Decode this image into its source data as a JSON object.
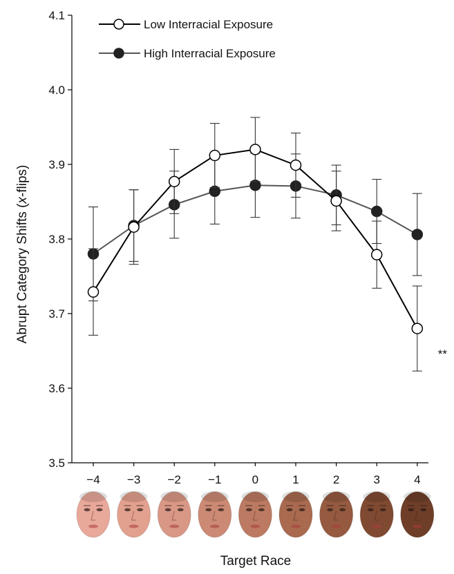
{
  "chart_data": {
    "type": "line",
    "title": "",
    "xlabel": "Target Race",
    "ylabel": "Abrupt Category Shifts (x-flips)",
    "ylabel_parts": {
      "before": "Abrupt Category Shifts (",
      "italic": "x",
      "after": "-flips)"
    },
    "x": [
      -4,
      -3,
      -2,
      -1,
      0,
      1,
      2,
      3,
      4
    ],
    "x_tick_labels": [
      "−4",
      "−3",
      "−2",
      "−1",
      "0",
      "1",
      "2",
      "3",
      "4"
    ],
    "ylim": [
      3.5,
      4.1
    ],
    "y_ticks": [
      3.5,
      3.6,
      3.7,
      3.8,
      3.9,
      4.0,
      4.1
    ],
    "y_tick_labels": [
      "3.5",
      "3.6",
      "3.7",
      "3.8",
      "3.9",
      "4.0",
      "4.1"
    ],
    "grid": false,
    "legend_position": "top-left",
    "series": [
      {
        "name": "Low Interracial Exposure",
        "marker": "open-circle",
        "line_color": "#000000",
        "values": [
          3.729,
          3.816,
          3.877,
          3.912,
          3.92,
          3.899,
          3.851,
          3.779,
          3.68
        ],
        "error": [
          0.058,
          0.05,
          0.043,
          0.043,
          0.043,
          0.043,
          0.04,
          0.045,
          0.057
        ]
      },
      {
        "name": "High Interracial Exposure",
        "marker": "filled-circle",
        "line_color": "#555555",
        "values": [
          3.78,
          3.818,
          3.846,
          3.864,
          3.872,
          3.871,
          3.859,
          3.837,
          3.806
        ],
        "error": [
          0.063,
          0.048,
          0.045,
          0.044,
          0.043,
          0.043,
          0.04,
          0.043,
          0.055
        ]
      }
    ],
    "annotations": [
      {
        "text": "**",
        "x": 4,
        "y": 3.665
      }
    ],
    "x_axis_images": [
      {
        "x": -4,
        "icon": "face-photo-icon",
        "skin_color": "#e8a89a"
      },
      {
        "x": -3,
        "icon": "face-photo-icon",
        "skin_color": "#e2a08e"
      },
      {
        "x": -2,
        "icon": "face-photo-icon",
        "skin_color": "#d99785"
      },
      {
        "x": -1,
        "icon": "face-photo-icon",
        "skin_color": "#cc8a74"
      },
      {
        "x": 0,
        "icon": "face-photo-icon",
        "skin_color": "#bd7a62"
      },
      {
        "x": 1,
        "icon": "face-photo-icon",
        "skin_color": "#a96a50"
      },
      {
        "x": 2,
        "icon": "face-photo-icon",
        "skin_color": "#955a40"
      },
      {
        "x": 3,
        "icon": "face-photo-icon",
        "skin_color": "#804a32"
      },
      {
        "x": 4,
        "icon": "face-photo-icon",
        "skin_color": "#6e3e29"
      }
    ]
  }
}
